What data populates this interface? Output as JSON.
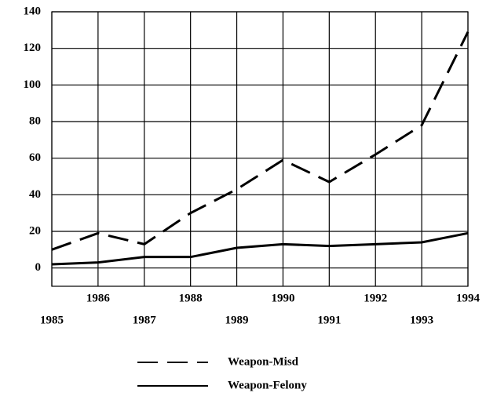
{
  "chart_data": {
    "type": "line",
    "x": [
      1985,
      1986,
      1987,
      1988,
      1989,
      1990,
      1991,
      1992,
      1993,
      1994
    ],
    "series": [
      {
        "name": "Weapon-Misd",
        "color": "#000000",
        "style": "dashed",
        "values": [
          10,
          19,
          13,
          30,
          43,
          59,
          47,
          62,
          78,
          129
        ]
      },
      {
        "name": "Weapon-Felony",
        "color": "#000000",
        "style": "solid",
        "values": [
          2,
          3,
          6,
          6,
          11,
          13,
          12,
          13,
          14,
          19
        ]
      }
    ],
    "xlim": [
      1985,
      1994
    ],
    "xticks": [
      1985,
      1986,
      1987,
      1988,
      1989,
      1990,
      1991,
      1992,
      1993,
      1994
    ],
    "ylim": [
      -10,
      140
    ],
    "yticks": [
      0,
      20,
      40,
      60,
      80,
      100,
      120,
      140
    ],
    "grid": true
  }
}
